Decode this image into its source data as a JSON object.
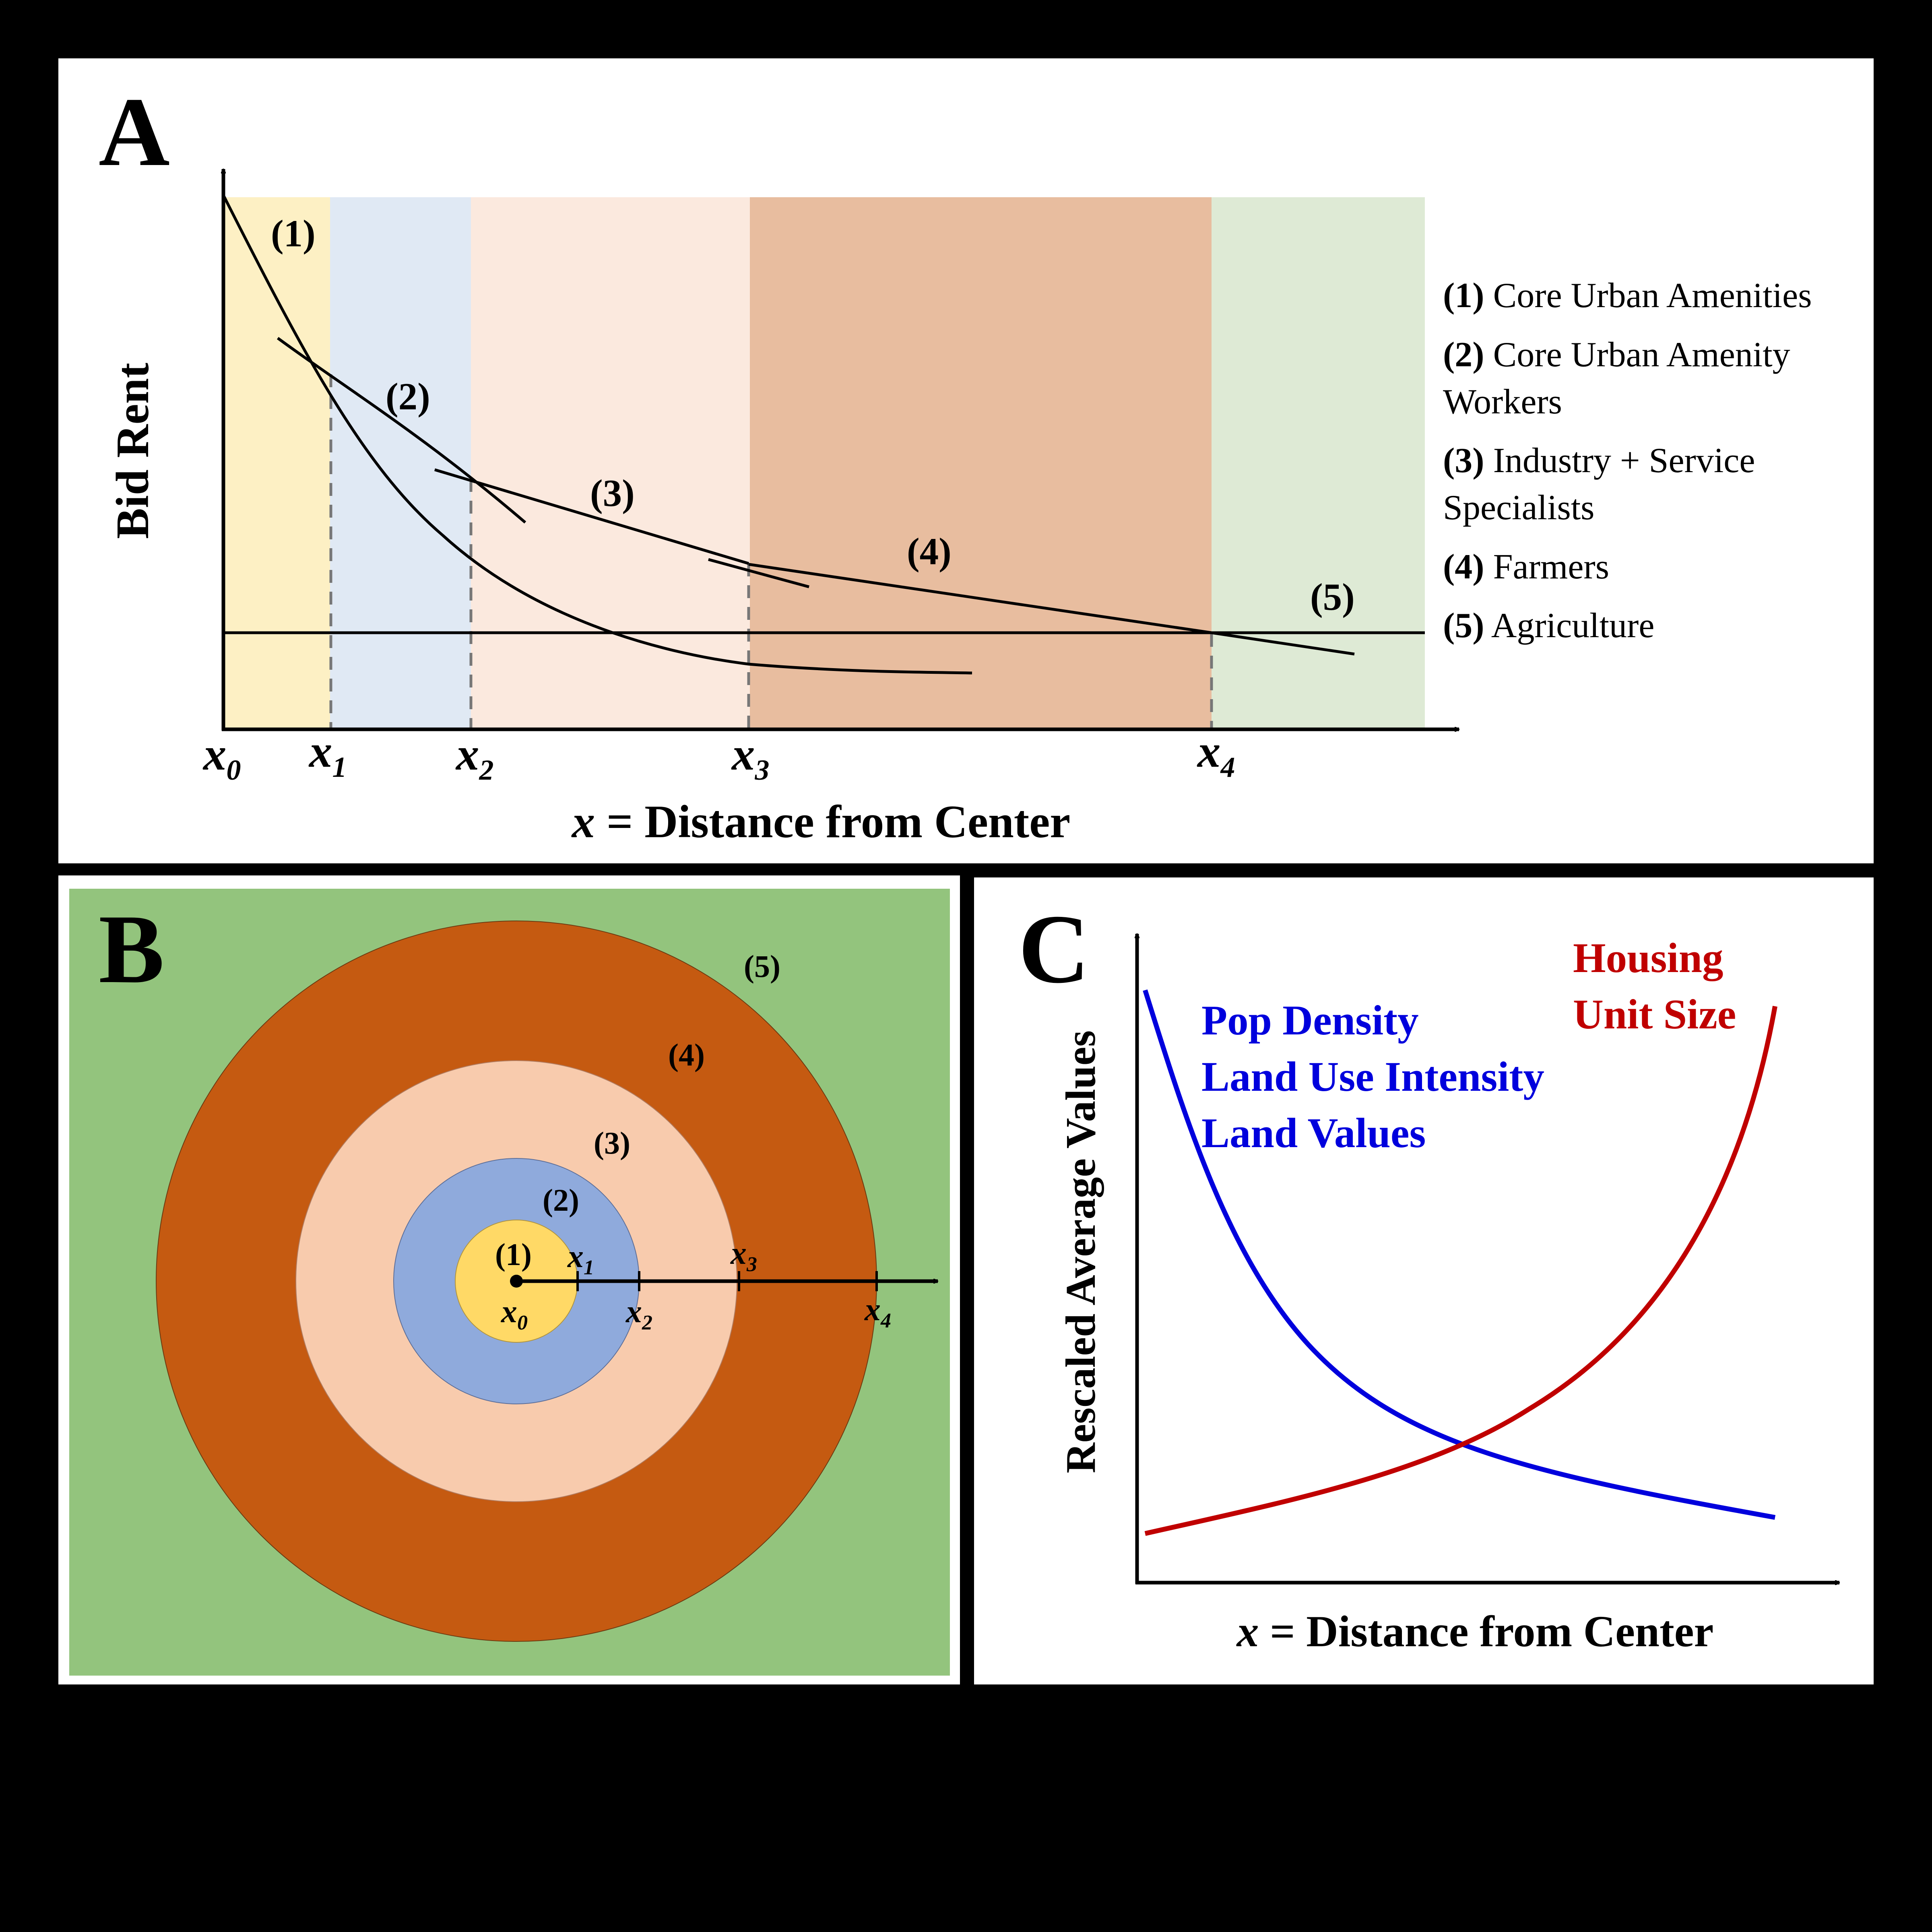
{
  "panel_a": {
    "letter": "A",
    "y_axis_label": "Bid Rent",
    "x_axis_var": "x",
    "x_axis_rest": " = Distance from Center",
    "ticks": [
      {
        "base": "x",
        "sub": "0"
      },
      {
        "base": "x",
        "sub": "1"
      },
      {
        "base": "x",
        "sub": "2"
      },
      {
        "base": "x",
        "sub": "3"
      },
      {
        "base": "x",
        "sub": "4"
      }
    ],
    "curve_labels": [
      "(1)",
      "(2)",
      "(3)",
      "(4)",
      "(5)"
    ],
    "zone_colors": [
      "#fdf0c4",
      "#e0e9f4",
      "#fbe9de",
      "#e8bd9f",
      "#deead5"
    ],
    "legend": [
      {
        "num": "(1)",
        "line1": "Core Urban Amenities",
        "line2": ""
      },
      {
        "num": "(2)",
        "line1": "Core Urban Amenity",
        "line2": "Workers"
      },
      {
        "num": "(3)",
        "line1": "Industry + Service",
        "line2": "Specialists"
      },
      {
        "num": "(4)",
        "line1": "Farmers",
        "line2": ""
      },
      {
        "num": "(5)",
        "line1": "Agriculture",
        "line2": ""
      }
    ]
  },
  "panel_b": {
    "letter": "B",
    "ring_labels": [
      "(1)",
      "(2)",
      "(3)",
      "(4)",
      "(5)"
    ],
    "ring_colors": [
      "#ffd966",
      "#8faadc",
      "#f8cbad",
      "#c55a11",
      "#93c47d"
    ],
    "ticks": [
      {
        "base": "x",
        "sub": "0"
      },
      {
        "base": "x",
        "sub": "1"
      },
      {
        "base": "x",
        "sub": "2"
      },
      {
        "base": "x",
        "sub": "3"
      },
      {
        "base": "x",
        "sub": "4"
      }
    ]
  },
  "panel_c": {
    "letter": "C",
    "y_axis_label": "Rescaled Average Values",
    "x_axis_var": "x",
    "x_axis_rest": " = Distance from Center",
    "blue_labels": [
      "Pop Density",
      "Land Use Intensity",
      "Land Values"
    ],
    "red_labels": [
      "Housing",
      "Unit Size"
    ],
    "blue_color": "#0000dd",
    "red_color": "#c00000"
  }
}
